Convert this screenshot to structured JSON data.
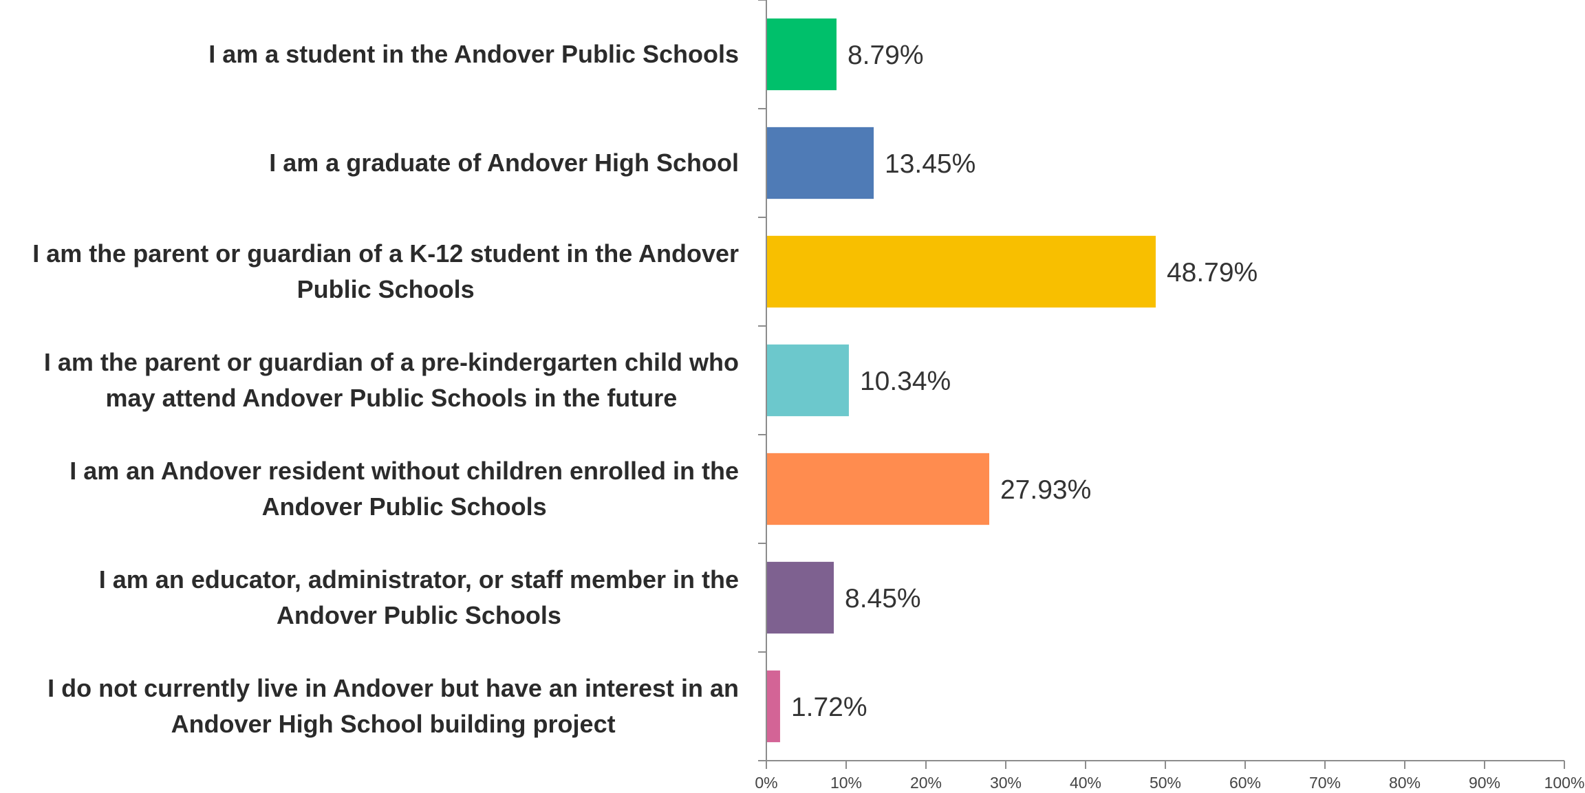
{
  "chart_data": {
    "type": "bar",
    "orientation": "horizontal",
    "categories": [
      [
        "I am a student in the Andover Public Schools"
      ],
      [
        "I am a graduate of Andover High School"
      ],
      [
        "I am the parent or guardian of a K-12 student in the Andover",
        "Public Schools"
      ],
      [
        "I am the parent or guardian of a pre-kindergarten child who",
        "may attend Andover Public Schools in the future"
      ],
      [
        "I am an Andover resident without children enrolled in the",
        "Andover Public Schools"
      ],
      [
        "I am an educator, administrator, or staff member in the",
        "Andover Public Schools"
      ],
      [
        "I do not currently live in Andover but have an interest in an",
        "Andover High School building project"
      ]
    ],
    "values": [
      8.79,
      13.45,
      48.79,
      10.34,
      27.93,
      8.45,
      1.72
    ],
    "value_labels": [
      "8.79%",
      "13.45%",
      "48.79%",
      "10.34%",
      "27.93%",
      "8.45%",
      "1.72%"
    ],
    "colors": [
      "#00c06b",
      "#4f7bb6",
      "#f8bf00",
      "#6cc8cc",
      "#ff8c4f",
      "#7e6190",
      "#d36496"
    ],
    "xlim": [
      0,
      100
    ],
    "x_ticks": [
      0,
      10,
      20,
      30,
      40,
      50,
      60,
      70,
      80,
      90,
      100
    ],
    "x_tick_labels": [
      "0%",
      "10%",
      "20%",
      "30%",
      "40%",
      "50%",
      "60%",
      "70%",
      "80%",
      "90%",
      "100%"
    ],
    "title": "",
    "xlabel": "",
    "ylabel": "",
    "grid": false,
    "legend": "none"
  }
}
